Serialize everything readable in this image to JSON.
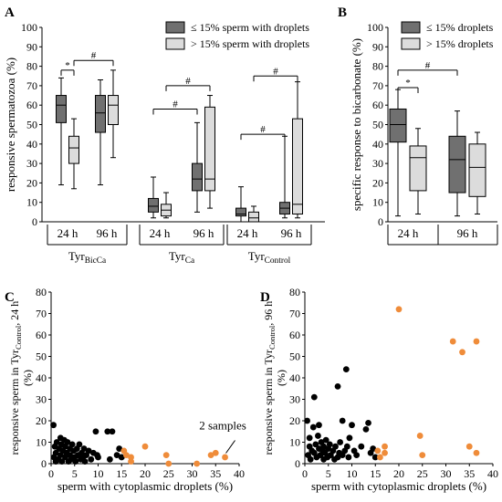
{
  "figure": {
    "panel_letters": [
      "A",
      "B",
      "C",
      "D"
    ],
    "colors": {
      "dark_box": "#707070",
      "light_box": "#dcdcdc",
      "black_dot": "#000000",
      "orange_dot": "#ef8c3a"
    }
  },
  "chart_data": [
    {
      "panel": "A",
      "type": "boxplot",
      "ylabel": "responsive spermatozoa (%)",
      "ylim": [
        0,
        100
      ],
      "yticks": [
        0,
        10,
        20,
        30,
        40,
        50,
        60,
        70,
        80,
        90,
        100
      ],
      "legend": [
        "≤ 15% sperm with droplets",
        "> 15% sperm with droplets"
      ],
      "legend_position": "top-right",
      "groups": [
        {
          "name": "TyrBicCa",
          "base": "Tyr",
          "sub": "BicCa",
          "times": [
            "24 h",
            "96 h"
          ]
        },
        {
          "name": "TyrCa",
          "base": "Tyr",
          "sub": "Ca",
          "times": [
            "24 h",
            "96 h"
          ]
        },
        {
          "name": "TyrControl",
          "base": "Tyr",
          "sub": "Control",
          "times": [
            "24 h",
            "96 h"
          ]
        }
      ],
      "boxes": [
        {
          "group": 0,
          "time": 0,
          "series": 0,
          "min": 19,
          "q1": 51,
          "median": 60,
          "q3": 65,
          "max": 74
        },
        {
          "group": 0,
          "time": 0,
          "series": 1,
          "min": 17,
          "q1": 30,
          "median": 38,
          "q3": 44,
          "max": 53
        },
        {
          "group": 0,
          "time": 1,
          "series": 0,
          "min": 19,
          "q1": 46,
          "median": 56,
          "q3": 65,
          "max": 73
        },
        {
          "group": 0,
          "time": 1,
          "series": 1,
          "min": 33,
          "q1": 50,
          "median": 60,
          "q3": 65,
          "max": 78
        },
        {
          "group": 1,
          "time": 0,
          "series": 0,
          "min": 2,
          "q1": 5,
          "median": 8,
          "q3": 12,
          "max": 23
        },
        {
          "group": 1,
          "time": 0,
          "series": 1,
          "min": 2,
          "q1": 3,
          "median": 6,
          "q3": 9,
          "max": 15
        },
        {
          "group": 1,
          "time": 1,
          "series": 0,
          "min": 5,
          "q1": 16,
          "median": 22,
          "q3": 30,
          "max": 51
        },
        {
          "group": 1,
          "time": 1,
          "series": 1,
          "min": 7,
          "q1": 16,
          "median": 22,
          "q3": 59,
          "max": 65
        },
        {
          "group": 2,
          "time": 0,
          "series": 0,
          "min": 0,
          "q1": 3,
          "median": 4,
          "q3": 7,
          "max": 18
        },
        {
          "group": 2,
          "time": 0,
          "series": 1,
          "min": 0,
          "q1": 0,
          "median": 2,
          "q3": 5,
          "max": 8
        },
        {
          "group": 2,
          "time": 1,
          "series": 0,
          "min": 2,
          "q1": 4,
          "median": 7,
          "q3": 10,
          "max": 44
        },
        {
          "group": 2,
          "time": 1,
          "series": 1,
          "min": 2,
          "q1": 4,
          "median": 9,
          "q3": 53,
          "max": 72
        }
      ],
      "annotations": [
        {
          "text": "*",
          "from": [
            0,
            0,
            0
          ],
          "to": [
            0,
            0,
            1
          ],
          "y": 78
        },
        {
          "text": "#",
          "from": [
            0,
            0,
            1
          ],
          "to": [
            0,
            1,
            1
          ],
          "y": 83
        },
        {
          "text": "#",
          "from": [
            1,
            0,
            0
          ],
          "to": [
            1,
            1,
            0
          ],
          "y": 58
        },
        {
          "text": "#",
          "from": [
            1,
            0,
            1
          ],
          "to": [
            1,
            1,
            1
          ],
          "y": 70
        },
        {
          "text": "#",
          "from": [
            2,
            0,
            0
          ],
          "to": [
            2,
            1,
            0
          ],
          "y": 45
        },
        {
          "text": "#",
          "from": [
            2,
            0,
            1
          ],
          "to": [
            2,
            1,
            1
          ],
          "y": 75
        }
      ]
    },
    {
      "panel": "B",
      "type": "boxplot",
      "ylabel": "specific response to bicarbonate (%)",
      "ylim": [
        0,
        100
      ],
      "yticks": [
        0,
        10,
        20,
        30,
        40,
        50,
        60,
        70,
        80,
        90,
        100
      ],
      "legend": [
        "≤ 15% droplets",
        "> 15% droplets"
      ],
      "legend_position": "top-right",
      "times": [
        "24 h",
        "96 h"
      ],
      "boxes": [
        {
          "time": 0,
          "series": 0,
          "min": 3,
          "q1": 41,
          "median": 50,
          "q3": 58,
          "max": 68
        },
        {
          "time": 0,
          "series": 1,
          "min": 4,
          "q1": 16,
          "median": 33,
          "q3": 39,
          "max": 48
        },
        {
          "time": 1,
          "series": 0,
          "min": 3,
          "q1": 15,
          "median": 32,
          "q3": 44,
          "max": 57
        },
        {
          "time": 1,
          "series": 1,
          "min": 4,
          "q1": 13,
          "median": 28,
          "q3": 40,
          "max": 46
        }
      ],
      "annotations": [
        {
          "text": "*",
          "from": [
            0,
            0
          ],
          "to": [
            0,
            1
          ],
          "y": 69
        },
        {
          "text": "#",
          "from": [
            0,
            0
          ],
          "to": [
            1,
            0
          ],
          "y": 78
        }
      ]
    },
    {
      "panel": "C",
      "type": "scatter",
      "xlabel": "sperm with cytoplasmic droplets (%)",
      "ylabel": "responsive sperm in TyrControl, 24 h (%)",
      "ylabel_parts": {
        "base": "responsive sperm in Tyr",
        "sub": "Control",
        "tail": ", 24 h",
        "unit": "(%)"
      },
      "xlim": [
        0,
        40
      ],
      "ylim": [
        0,
        80
      ],
      "xticks": [
        0,
        5,
        10,
        15,
        20,
        25,
        30,
        35,
        40
      ],
      "yticks": [
        0,
        10,
        20,
        30,
        40,
        50,
        60,
        70,
        80
      ],
      "annotation": "2 samples",
      "series": [
        {
          "name": "≤ 15% droplets",
          "color": "#000000",
          "points": [
            [
              0.5,
              18
            ],
            [
              0.6,
              3
            ],
            [
              0.8,
              8
            ],
            [
              1,
              1
            ],
            [
              1,
              5
            ],
            [
              1.2,
              10
            ],
            [
              1.5,
              2
            ],
            [
              1.7,
              7
            ],
            [
              2,
              4
            ],
            [
              2,
              12
            ],
            [
              2.2,
              9
            ],
            [
              2.3,
              1
            ],
            [
              2.5,
              6
            ],
            [
              2.8,
              11
            ],
            [
              3,
              3
            ],
            [
              3,
              8
            ],
            [
              3.3,
              5
            ],
            [
              3.5,
              10
            ],
            [
              3.7,
              1
            ],
            [
              4,
              7
            ],
            [
              4,
              4
            ],
            [
              4.3,
              2
            ],
            [
              4.5,
              9
            ],
            [
              4.8,
              6
            ],
            [
              5,
              3
            ],
            [
              5.2,
              1
            ],
            [
              5.5,
              7
            ],
            [
              5.7,
              4
            ],
            [
              6,
              9
            ],
            [
              6.3,
              2
            ],
            [
              6.5,
              5
            ],
            [
              6.8,
              3
            ],
            [
              7,
              7
            ],
            [
              7.2,
              1
            ],
            [
              7.5,
              4
            ],
            [
              8,
              6
            ],
            [
              8.5,
              2
            ],
            [
              9,
              5
            ],
            [
              9.5,
              15
            ],
            [
              9.8,
              4
            ],
            [
              10,
              3
            ],
            [
              12,
              15
            ],
            [
              12.5,
              2
            ],
            [
              13,
              15
            ],
            [
              14,
              4
            ],
            [
              14.5,
              7
            ],
            [
              15,
              3
            ]
          ]
        },
        {
          "name": "> 15% droplets",
          "color": "#ef8c3a",
          "points": [
            [
              15.5,
              6
            ],
            [
              16,
              4
            ],
            [
              17,
              1
            ],
            [
              17,
              3
            ],
            [
              20,
              8
            ],
            [
              24.5,
              4
            ],
            [
              25,
              0
            ],
            [
              31,
              0
            ],
            [
              34,
              4
            ],
            [
              35,
              5
            ],
            [
              37,
              3
            ]
          ]
        }
      ]
    },
    {
      "panel": "D",
      "type": "scatter",
      "xlabel": "sperm with cytoplasmic droplets (%)",
      "ylabel": "responsive sperm in TyrControl, 96 h (%)",
      "ylabel_parts": {
        "base": "responsive sperm in Tyr",
        "sub": "Control",
        "tail": ", 96 h",
        "unit": "(%)"
      },
      "xlim": [
        0,
        40
      ],
      "ylim": [
        0,
        80
      ],
      "xticks": [
        0,
        5,
        10,
        15,
        20,
        25,
        30,
        35,
        40
      ],
      "yticks": [
        0,
        10,
        20,
        30,
        40,
        50,
        60,
        70,
        80
      ],
      "series": [
        {
          "name": "≤ 15% droplets",
          "color": "#000000",
          "points": [
            [
              0.5,
              20
            ],
            [
              0.7,
              4
            ],
            [
              1,
              8
            ],
            [
              1,
              12
            ],
            [
              1.2,
              2
            ],
            [
              1.5,
              6
            ],
            [
              1.8,
              17
            ],
            [
              2,
              31
            ],
            [
              2,
              5
            ],
            [
              2.3,
              9
            ],
            [
              2.5,
              3
            ],
            [
              2.8,
              13
            ],
            [
              3,
              7
            ],
            [
              3,
              18
            ],
            [
              3.3,
              4
            ],
            [
              3.5,
              10
            ],
            [
              3.8,
              6
            ],
            [
              4,
              2
            ],
            [
              4,
              8
            ],
            [
              4.3,
              5
            ],
            [
              4.5,
              11
            ],
            [
              4.8,
              3
            ],
            [
              5,
              7
            ],
            [
              5.3,
              9
            ],
            [
              5.5,
              4
            ],
            [
              6,
              6
            ],
            [
              6.3,
              2
            ],
            [
              6.5,
              8
            ],
            [
              7,
              36
            ],
            [
              7,
              3
            ],
            [
              7.3,
              5
            ],
            [
              7.5,
              10
            ],
            [
              8,
              20
            ],
            [
              8,
              4
            ],
            [
              8.5,
              6
            ],
            [
              8.8,
              44
            ],
            [
              9,
              8
            ],
            [
              9.3,
              3
            ],
            [
              9.5,
              12
            ],
            [
              10,
              18
            ],
            [
              10.5,
              6
            ],
            [
              11,
              4
            ],
            [
              12,
              8
            ],
            [
              13,
              16
            ],
            [
              13.5,
              19
            ],
            [
              14,
              5
            ],
            [
              14.5,
              7
            ],
            [
              15,
              3
            ]
          ]
        },
        {
          "name": "> 15% droplets",
          "color": "#ef8c3a",
          "points": [
            [
              15.5,
              6
            ],
            [
              16,
              3
            ],
            [
              17,
              5
            ],
            [
              17,
              8
            ],
            [
              20,
              72
            ],
            [
              24.5,
              13
            ],
            [
              25,
              4
            ],
            [
              31.5,
              57
            ],
            [
              33.5,
              52
            ],
            [
              35,
              8
            ],
            [
              36.5,
              57
            ],
            [
              36.5,
              5
            ]
          ]
        }
      ]
    }
  ]
}
